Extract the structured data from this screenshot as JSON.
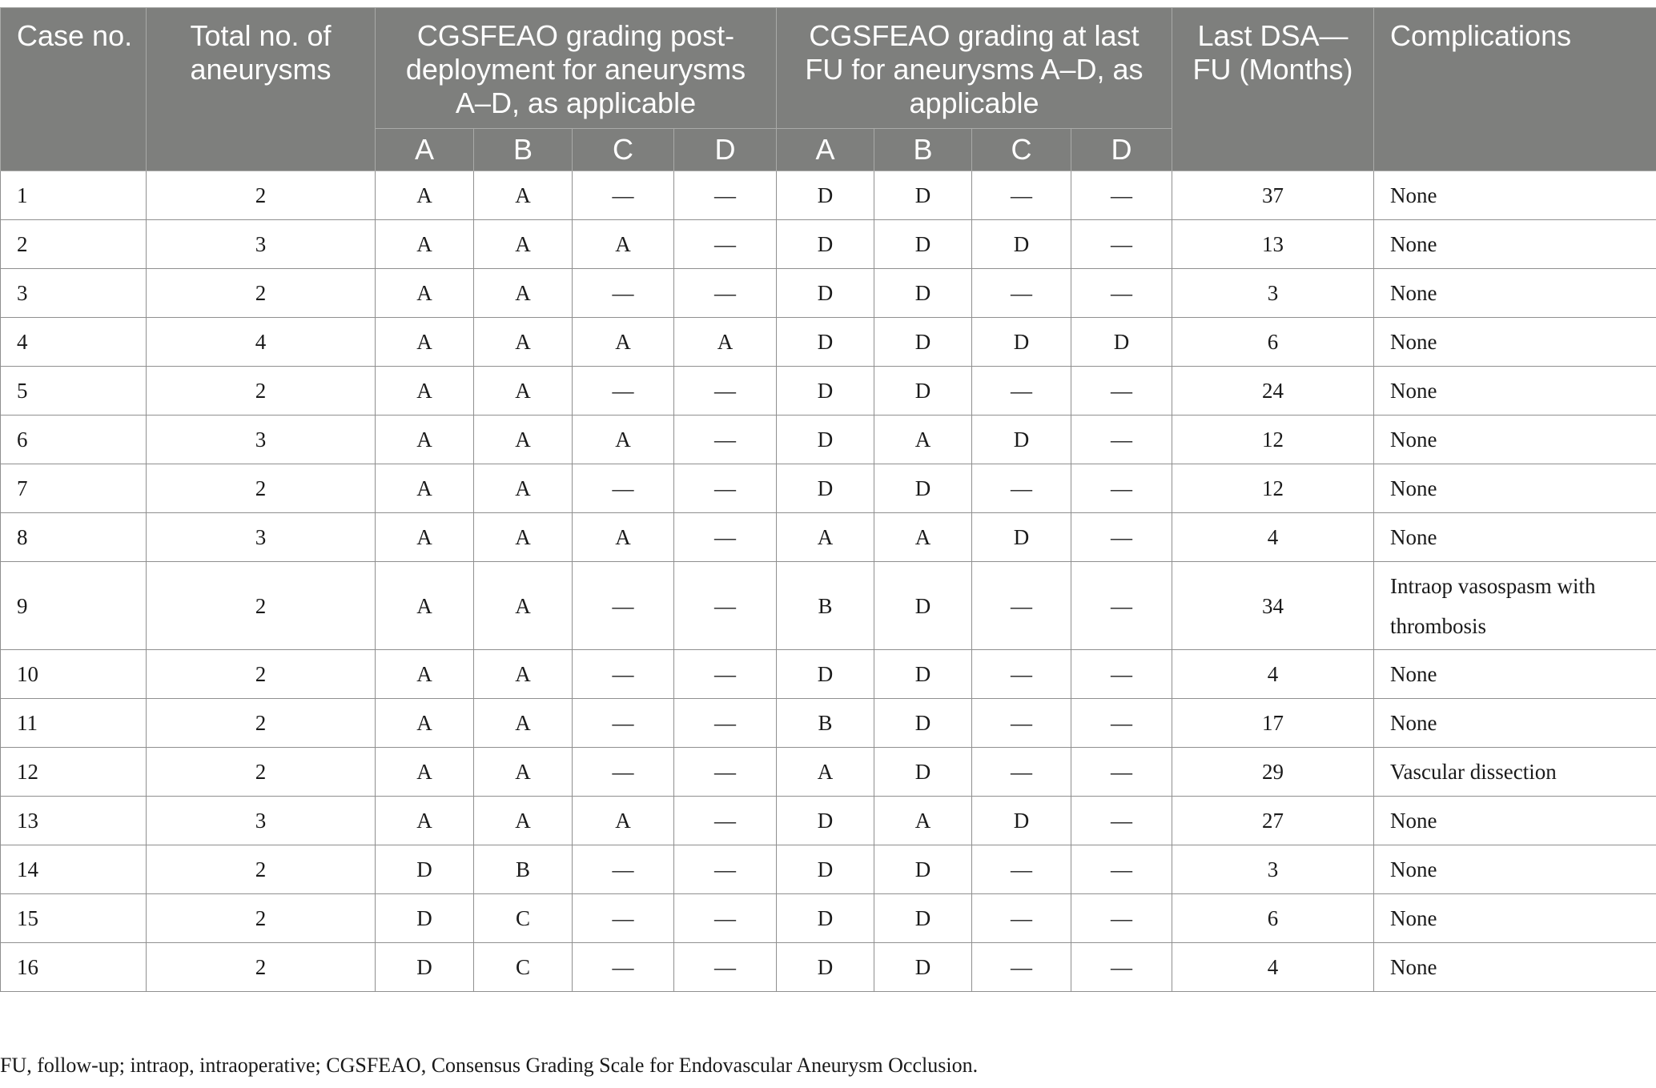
{
  "table": {
    "headers": {
      "case_no": "Case no.",
      "total_aneurysms": "Total no. of aneurysms",
      "grading_post": "CGSFEAO grading post-deployment for aneurysms A–D, as applicable",
      "grading_last": "CGSFEAO grading at last FU for aneurysms A–D, as applicable",
      "last_dsa": "Last DSA—FU (Months)",
      "complications": "Complications",
      "sub_post": [
        "A",
        "B",
        "C",
        "D"
      ],
      "sub_last": [
        "A",
        "B",
        "C",
        "D"
      ]
    },
    "rows": [
      {
        "case": "1",
        "total": "2",
        "post": [
          "A",
          "A",
          "—",
          "—"
        ],
        "last": [
          "D",
          "D",
          "—",
          "—"
        ],
        "months": "37",
        "complications": "None"
      },
      {
        "case": "2",
        "total": "3",
        "post": [
          "A",
          "A",
          "A",
          "—"
        ],
        "last": [
          "D",
          "D",
          "D",
          "—"
        ],
        "months": "13",
        "complications": "None"
      },
      {
        "case": "3",
        "total": "2",
        "post": [
          "A",
          "A",
          "—",
          "—"
        ],
        "last": [
          "D",
          "D",
          "—",
          "—"
        ],
        "months": "3",
        "complications": "None"
      },
      {
        "case": "4",
        "total": "4",
        "post": [
          "A",
          "A",
          "A",
          "A"
        ],
        "last": [
          "D",
          "D",
          "D",
          "D"
        ],
        "months": "6",
        "complications": "None"
      },
      {
        "case": "5",
        "total": "2",
        "post": [
          "A",
          "A",
          "—",
          "—"
        ],
        "last": [
          "D",
          "D",
          "—",
          "—"
        ],
        "months": "24",
        "complications": "None"
      },
      {
        "case": "6",
        "total": "3",
        "post": [
          "A",
          "A",
          "A",
          "—"
        ],
        "last": [
          "D",
          "A",
          "D",
          "—"
        ],
        "months": "12",
        "complications": "None"
      },
      {
        "case": "7",
        "total": "2",
        "post": [
          "A",
          "A",
          "—",
          "—"
        ],
        "last": [
          "D",
          "D",
          "—",
          "—"
        ],
        "months": "12",
        "complications": "None"
      },
      {
        "case": "8",
        "total": "3",
        "post": [
          "A",
          "A",
          "A",
          "—"
        ],
        "last": [
          "A",
          "A",
          "D",
          "—"
        ],
        "months": "4",
        "complications": "None"
      },
      {
        "case": "9",
        "total": "2",
        "post": [
          "A",
          "A",
          "—",
          "—"
        ],
        "last": [
          "B",
          "D",
          "—",
          "—"
        ],
        "months": "34",
        "complications": "Intraop vasospasm with thrombosis"
      },
      {
        "case": "10",
        "total": "2",
        "post": [
          "A",
          "A",
          "—",
          "—"
        ],
        "last": [
          "D",
          "D",
          "—",
          "—"
        ],
        "months": "4",
        "complications": "None"
      },
      {
        "case": "11",
        "total": "2",
        "post": [
          "A",
          "A",
          "—",
          "—"
        ],
        "last": [
          "B",
          "D",
          "—",
          "—"
        ],
        "months": "17",
        "complications": "None"
      },
      {
        "case": "12",
        "total": "2",
        "post": [
          "A",
          "A",
          "—",
          "—"
        ],
        "last": [
          "A",
          "D",
          "—",
          "—"
        ],
        "months": "29",
        "complications": "Vascular dissection"
      },
      {
        "case": "13",
        "total": "3",
        "post": [
          "A",
          "A",
          "A",
          "—"
        ],
        "last": [
          "D",
          "A",
          "D",
          "—"
        ],
        "months": "27",
        "complications": "None"
      },
      {
        "case": "14",
        "total": "2",
        "post": [
          "D",
          "B",
          "—",
          "—"
        ],
        "last": [
          "D",
          "D",
          "—",
          "—"
        ],
        "months": "3",
        "complications": "None"
      },
      {
        "case": "15",
        "total": "2",
        "post": [
          "D",
          "C",
          "—",
          "—"
        ],
        "last": [
          "D",
          "D",
          "—",
          "—"
        ],
        "months": "6",
        "complications": "None"
      },
      {
        "case": "16",
        "total": "2",
        "post": [
          "D",
          "C",
          "—",
          "—"
        ],
        "last": [
          "D",
          "D",
          "—",
          "—"
        ],
        "months": "4",
        "complications": "None"
      }
    ]
  },
  "footnote": "FU, follow-up; intraop, intraoperative; CGSFEAO, Consensus Grading Scale for Endovascular Aneurysm Occlusion.",
  "colors": {
    "header_background": "#7e7f7d",
    "header_text": "#ffffff",
    "body_text": "#1a1a1a",
    "grid_lines": "#8f8f8f"
  }
}
